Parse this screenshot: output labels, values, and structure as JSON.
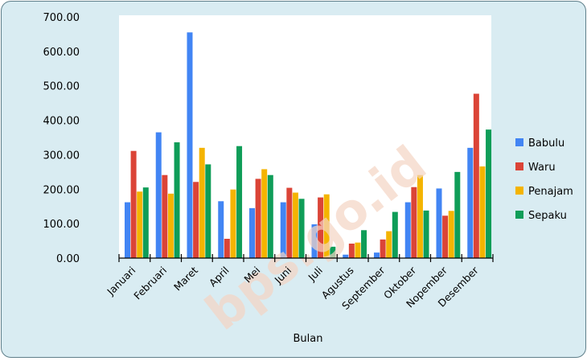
{
  "chart_data": {
    "type": "bar",
    "categories": [
      "Januari",
      "Februari",
      "Maret",
      "April",
      "Mei",
      "Juni",
      "Juli",
      "Agustus",
      "September",
      "Oktober",
      "Nopember",
      "Desember"
    ],
    "series": [
      {
        "name": "Babulu",
        "color": "#4285f4",
        "values": [
          162,
          365,
          655,
          165,
          145,
          162,
          98,
          10,
          16,
          162,
          202,
          320
        ]
      },
      {
        "name": "Waru",
        "color": "#db4437",
        "values": [
          311,
          241,
          221,
          56,
          230,
          204,
          176,
          42,
          54,
          206,
          123,
          477
        ]
      },
      {
        "name": "Penajam",
        "color": "#f4b400",
        "values": [
          193,
          187,
          320,
          199,
          258,
          190,
          185,
          45,
          78,
          241,
          137,
          266
        ]
      },
      {
        "name": "Sepaku",
        "color": "#0f9d58",
        "values": [
          205,
          336,
          272,
          325,
          241,
          172,
          33,
          81,
          134,
          138,
          250,
          373
        ]
      }
    ],
    "xlabel": "Bulan",
    "ylabel": "",
    "ylim": [
      0,
      700
    ],
    "yticks": [
      "0.00",
      "100.00",
      "200.00",
      "300.00",
      "400.00",
      "500.00",
      "600.00",
      "700.00"
    ],
    "legend": "right",
    "grid": false,
    "watermark": "bps.go.id"
  }
}
